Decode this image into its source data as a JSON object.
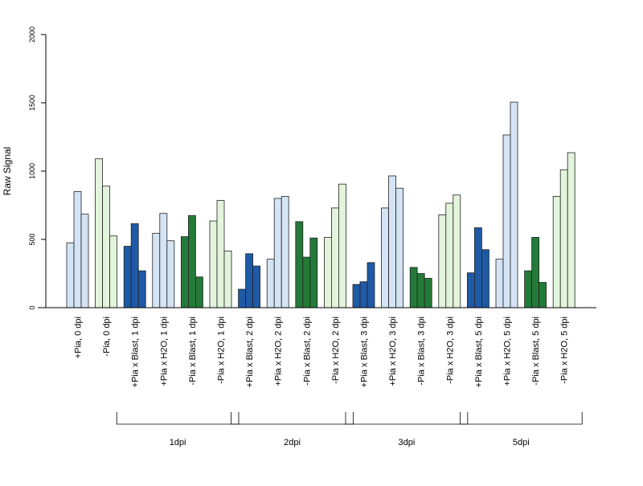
{
  "chart_data": {
    "type": "bar",
    "ylabel": "Raw Signal",
    "xlabel": "",
    "ylim": [
      0,
      2000
    ],
    "yticks": [
      0,
      500,
      1000,
      1500,
      2000
    ],
    "yticks_rotated": true,
    "grid": false,
    "legend": "none",
    "bars_per_group": 3,
    "colors": {
      "light_blue": "#d4e4f4",
      "dark_blue": "#1f5aa6",
      "light_green": "#e3f4dc",
      "dark_green": "#247a38",
      "outline": "#222222"
    },
    "categories": [
      "+Pia, 0 dpi",
      "-Pia, 0 dpi",
      "+Pia x Blast, 1 dpi",
      "+Pia x H2O, 1 dpi",
      "-Pia x Blast, 1 dpi",
      "-Pia x H2O, 1 dpi",
      "+Pia x Blast, 2 dpi",
      "+Pia x H2O, 2 dpi",
      "-Pia x Blast, 2 dpi",
      "-Pia x H2O, 2 dpi",
      "+Pia x Blast, 3 dpi",
      "+Pia x H2O, 3 dpi",
      "-Pia x Blast, 3 dpi",
      "-Pia x H2O, 3 dpi",
      "+Pia x Blast, 5 dpi",
      "+Pia x H2O, 5 dpi",
      "-Pia x Blast, 5 dpi",
      "-Pia x H2O, 5 dpi"
    ],
    "category_colors": [
      "light_blue",
      "light_green",
      "dark_blue",
      "light_blue",
      "dark_green",
      "light_green",
      "dark_blue",
      "light_blue",
      "dark_green",
      "light_green",
      "dark_blue",
      "light_blue",
      "dark_green",
      "light_green",
      "dark_blue",
      "light_blue",
      "dark_green",
      "light_green"
    ],
    "values": [
      [
        475,
        850,
        685
      ],
      [
        1090,
        890,
        525
      ],
      [
        450,
        615,
        270
      ],
      [
        545,
        690,
        490
      ],
      [
        520,
        675,
        225
      ],
      [
        635,
        785,
        415
      ],
      [
        135,
        395,
        305
      ],
      [
        355,
        800,
        815
      ],
      [
        630,
        370,
        510
      ],
      [
        515,
        730,
        905
      ],
      [
        170,
        190,
        330
      ],
      [
        730,
        965,
        875
      ],
      [
        295,
        250,
        215
      ],
      [
        680,
        765,
        825
      ],
      [
        255,
        585,
        425
      ],
      [
        355,
        1265,
        1505
      ],
      [
        270,
        515,
        185
      ],
      [
        815,
        1010,
        1135
      ]
    ],
    "groups": [
      {
        "label": "1dpi",
        "first_category": 2,
        "last_category": 5
      },
      {
        "label": "2dpi",
        "first_category": 6,
        "last_category": 9
      },
      {
        "label": "3dpi",
        "first_category": 10,
        "last_category": 13
      },
      {
        "label": "5dpi",
        "first_category": 14,
        "last_category": 17
      }
    ]
  }
}
